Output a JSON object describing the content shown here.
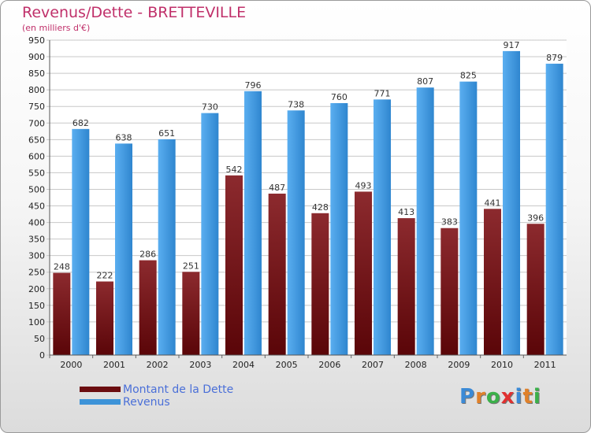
{
  "header": {
    "title": "Revenus/Dette - BRETTEVILLE",
    "subtitle": "(en milliers d'€)"
  },
  "chart_data": {
    "type": "bar",
    "title": "Revenus/Dette - BRETTEVILLE",
    "subtitle": "(en milliers d'€)",
    "categories": [
      "2000",
      "2001",
      "2002",
      "2003",
      "2004",
      "2005",
      "2006",
      "2007",
      "2008",
      "2009",
      "2010",
      "2011"
    ],
    "series": [
      {
        "name": "Montant de la Dette",
        "color": "#7a1a1e",
        "values": [
          248,
          222,
          286,
          251,
          542,
          487,
          428,
          493,
          413,
          383,
          441,
          396
        ]
      },
      {
        "name": "Revenus",
        "color": "#3d93d8",
        "values": [
          682,
          638,
          651,
          730,
          796,
          738,
          760,
          771,
          807,
          825,
          917,
          879
        ]
      }
    ],
    "ylim": [
      0,
      950
    ],
    "ytick_step": 50,
    "grid": true,
    "legend_position": "bottom-left"
  },
  "legend": {
    "items": [
      {
        "label": "Montant de la Dette",
        "color": "#6b0d10"
      },
      {
        "label": "Revenus",
        "color": "#3d93d8"
      }
    ]
  },
  "logo": {
    "letters": [
      "P",
      "r",
      "o",
      "x",
      "i",
      "t",
      "i"
    ],
    "colors": [
      "#3b8ad6",
      "#e0812a",
      "#3bb04a",
      "#e03030",
      "#3b8ad6",
      "#e0812a",
      "#3bb04a"
    ]
  }
}
